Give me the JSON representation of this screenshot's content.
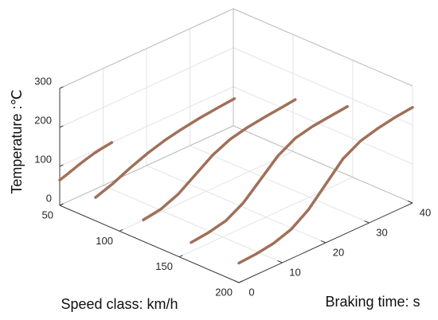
{
  "chart_data": {
    "type": "line3d",
    "xlabel": "Speed class: km/h",
    "ylabel": "Braking time: s",
    "zlabel": "Temperature :℃",
    "xlim": [
      50,
      200
    ],
    "xticks": [
      50,
      100,
      150,
      200
    ],
    "ylim": [
      0,
      40
    ],
    "yticks": [
      0,
      10,
      20,
      30,
      40
    ],
    "zlim": [
      0,
      300
    ],
    "zticks": [
      0,
      100,
      200,
      300
    ],
    "grid": true,
    "color": "#a0705a",
    "series": [
      {
        "speed": 50,
        "x": [
          0,
          2,
          4,
          6,
          8,
          10,
          12
        ],
        "values": [
          65,
          72,
          80,
          87,
          93,
          97,
          100
        ]
      },
      {
        "speed": 80,
        "x": [
          0,
          4,
          8,
          12,
          16,
          20,
          24,
          28,
          32
        ],
        "values": [
          60,
          75,
          95,
          112,
          125,
          134,
          141,
          146,
          150
        ]
      },
      {
        "speed": 120,
        "x": [
          0,
          4,
          8,
          12,
          16,
          20,
          24,
          28,
          32,
          35
        ],
        "values": [
          55,
          62,
          80,
          110,
          140,
          160,
          170,
          176,
          181,
          185
        ]
      },
      {
        "speed": 160,
        "x": [
          0,
          4,
          8,
          12,
          16,
          20,
          24,
          28,
          32,
          36
        ],
        "values": [
          50,
          55,
          65,
          90,
          130,
          170,
          195,
          205,
          210,
          215
        ]
      },
      {
        "speed": 200,
        "x": [
          0,
          4,
          8,
          12,
          16,
          20,
          24,
          28,
          32,
          36,
          40
        ],
        "values": [
          50,
          53,
          60,
          75,
          105,
          150,
          195,
          220,
          232,
          240,
          245
        ]
      }
    ]
  }
}
